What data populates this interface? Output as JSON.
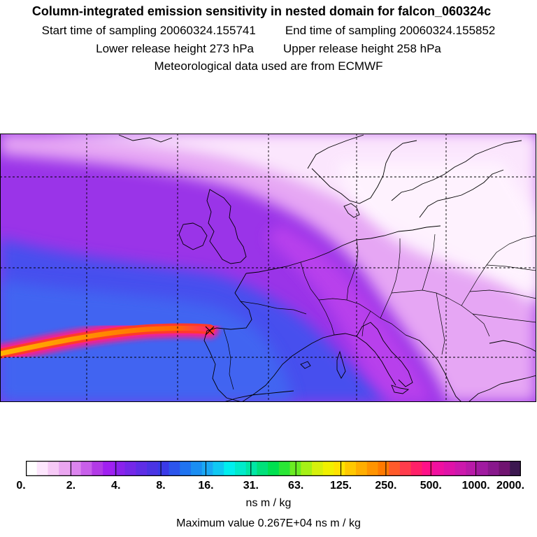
{
  "header": {
    "title": "Column-integrated emission sensitivity in nested domain for falcon_060324c",
    "start_label": "Start time of sampling 20060324.155741",
    "end_label": "End time of sampling 20060324.155852",
    "lower_label": "Lower release height  273 hPa",
    "upper_label": "Upper release height  258 hPa",
    "met_label": "Meteorological data used are from ECMWF"
  },
  "colorbar": {
    "unit": "ns m / kg",
    "ticks": [
      "0.",
      "2.",
      "4.",
      "8.",
      "16.",
      "31.",
      "63.",
      "125.",
      "250.",
      "500.",
      "1000.",
      "2000."
    ],
    "colors": [
      "#ffffff",
      "#fde6fd",
      "#f6c9f6",
      "#eaa6f0",
      "#dc84ee",
      "#c85fea",
      "#b23ae6",
      "#a020f0",
      "#8a22ec",
      "#7428e8",
      "#5e2ee6",
      "#4a34e4",
      "#3a3ae8",
      "#2c55ec",
      "#1f73f0",
      "#1b8ef2",
      "#1aa8f4",
      "#10c8f2",
      "#00eeee",
      "#00eacb",
      "#00e6a5",
      "#00e07a",
      "#00e050",
      "#2ae636",
      "#6aec22",
      "#a6f016",
      "#d6f00c",
      "#f0f000",
      "#ffe200",
      "#ffc800",
      "#ffae00",
      "#ff9400",
      "#ff7a00",
      "#ff5a2a",
      "#ff3c4c",
      "#ff2068",
      "#ff1088",
      "#f010a0",
      "#e012a8",
      "#cc18ac",
      "#b81aa8",
      "#a01aa0",
      "#88188c",
      "#701470",
      "#3c1850"
    ]
  },
  "maximum": {
    "label": "Maximum value  0.267E+04 ns m / kg"
  },
  "map": {
    "grid": "dashed",
    "colors": {
      "white": "#ffffff",
      "light_magenta": "#eaa8f4",
      "magenta": "#c040f0",
      "violet": "#8a2ce8",
      "blue": "#4050f0",
      "light_blue": "#4a7af4",
      "plume_outer": "#ff1a8c",
      "plume_mid": "#ff4a1a",
      "plume_core": "#ffd200"
    }
  }
}
